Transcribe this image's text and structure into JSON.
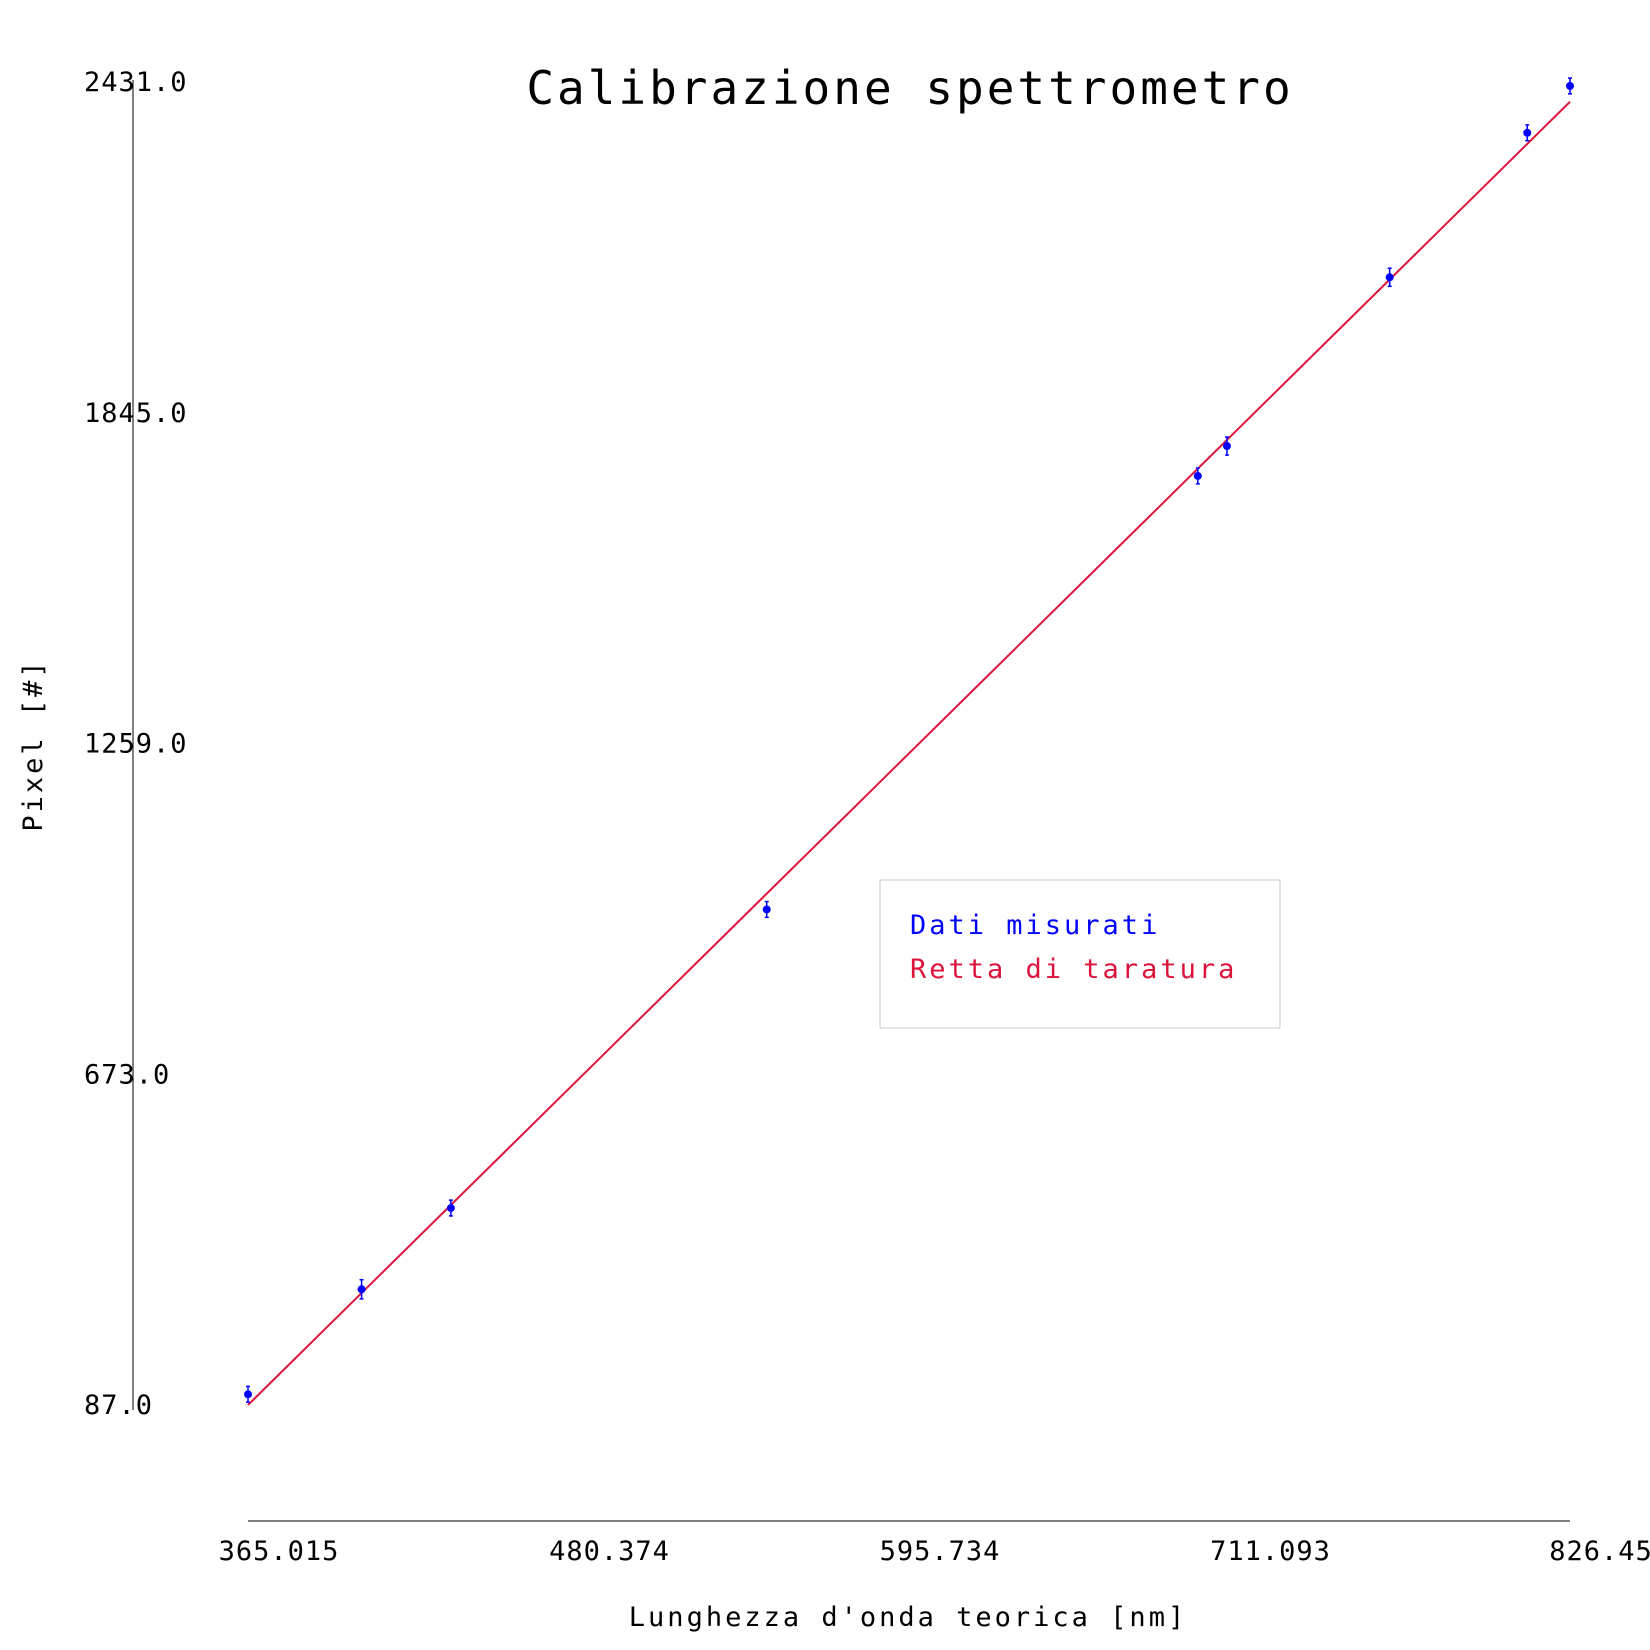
{
  "chart_data": {
    "type": "scatter",
    "title": "Calibrazione spettrometro",
    "xlabel": "Lunghezza d'onda teorica [nm]",
    "ylabel": "Pixel [#]",
    "xlim": [
      365.015,
      826.45
    ],
    "ylim": [
      87.0,
      2431.0
    ],
    "x_ticks": [
      "365.015",
      "480.374",
      "595.734",
      "711.093",
      "826.45"
    ],
    "y_ticks": [
      "87.0",
      "673.0",
      "1259.0",
      "1845.0",
      "2431.0"
    ],
    "grid": false,
    "legend_position": "center-right",
    "series": [
      {
        "name": "Dati misurati",
        "kind": "scatter",
        "color": "#0000ff",
        "x": [
          365.015,
          404.656,
          435.833,
          546.074,
          696.543,
          706.722,
          763.511,
          811.531,
          826.452
        ],
        "y": [
          106,
          292,
          436,
          965,
          1733,
          1786,
          2085,
          2341,
          2424
        ],
        "yerr": [
          14,
          17,
          14,
          14,
          14,
          16,
          16,
          14,
          14
        ]
      },
      {
        "name": "Retta di taratura",
        "kind": "line",
        "color": "#dc143c",
        "x": [
          365.015,
          826.45
        ],
        "y": [
          87.0,
          2396.0
        ]
      }
    ]
  }
}
